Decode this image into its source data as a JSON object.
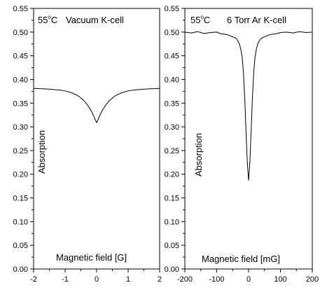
{
  "chart_data": [
    {
      "type": "line",
      "annotation": {
        "temp_value": "55",
        "temp_sup": "o",
        "temp_unit": "C",
        "label": "Vacuum K-cell"
      },
      "xlabel": "Magnetic field [G]",
      "ylabel": "Absorption",
      "xlim": [
        -2,
        2
      ],
      "ylim": [
        0,
        0.55
      ],
      "xticks": [
        "-2",
        "-1",
        "0",
        "1",
        "2"
      ],
      "yticks": [
        "0.00",
        "0.05",
        "0.10",
        "0.15",
        "0.20",
        "0.25",
        "0.30",
        "0.35",
        "0.40",
        "0.45",
        "0.50",
        "0.55"
      ],
      "grid": false,
      "series": [
        {
          "color": "#000000",
          "x": [
            -2,
            -1.6,
            -1.2,
            -1.0,
            -0.8,
            -0.6,
            -0.5,
            -0.4,
            -0.3,
            -0.2,
            -0.15,
            -0.1,
            -0.05,
            0,
            0.05,
            0.1,
            0.15,
            0.2,
            0.3,
            0.4,
            0.5,
            0.6,
            0.8,
            1.0,
            1.2,
            1.6,
            2
          ],
          "y": [
            0.381,
            0.38,
            0.378,
            0.376,
            0.372,
            0.366,
            0.361,
            0.355,
            0.347,
            0.337,
            0.331,
            0.324,
            0.316,
            0.309,
            0.316,
            0.324,
            0.331,
            0.337,
            0.347,
            0.355,
            0.361,
            0.366,
            0.372,
            0.376,
            0.378,
            0.38,
            0.381
          ]
        }
      ]
    },
    {
      "type": "line",
      "annotation": {
        "temp_value": "55",
        "temp_sup": "o",
        "temp_unit": "C",
        "label": "6 Torr Ar K-cell"
      },
      "xlabel": "Magnetic field [mG]",
      "ylabel": "Absorption",
      "xlim": [
        -200,
        200
      ],
      "ylim": [
        0,
        0.55
      ],
      "xticks": [
        "-200",
        "-100",
        "0",
        "100",
        "200"
      ],
      "yticks": [
        "0.00",
        "0.05",
        "0.10",
        "0.15",
        "0.20",
        "0.25",
        "0.30",
        "0.35",
        "0.40",
        "0.45",
        "0.50",
        "0.55"
      ],
      "grid": false,
      "series": [
        {
          "color": "#000000",
          "x": [
            -200,
            -180,
            -160,
            -140,
            -120,
            -100,
            -90,
            -80,
            -70,
            -60,
            -50,
            -40,
            -35,
            -30,
            -25,
            -20,
            -16,
            -12,
            -8,
            -4,
            0,
            4,
            8,
            12,
            16,
            20,
            25,
            30,
            35,
            40,
            50,
            60,
            70,
            80,
            90,
            100,
            120,
            140,
            160,
            180,
            200
          ],
          "y": [
            0.5,
            0.498,
            0.501,
            0.497,
            0.499,
            0.5,
            0.497,
            0.496,
            0.495,
            0.493,
            0.49,
            0.487,
            0.483,
            0.477,
            0.466,
            0.446,
            0.413,
            0.36,
            0.29,
            0.225,
            0.187,
            0.225,
            0.29,
            0.36,
            0.413,
            0.446,
            0.466,
            0.477,
            0.483,
            0.487,
            0.49,
            0.493,
            0.495,
            0.496,
            0.497,
            0.499,
            0.5,
            0.498,
            0.501,
            0.499,
            0.5
          ]
        }
      ]
    }
  ]
}
